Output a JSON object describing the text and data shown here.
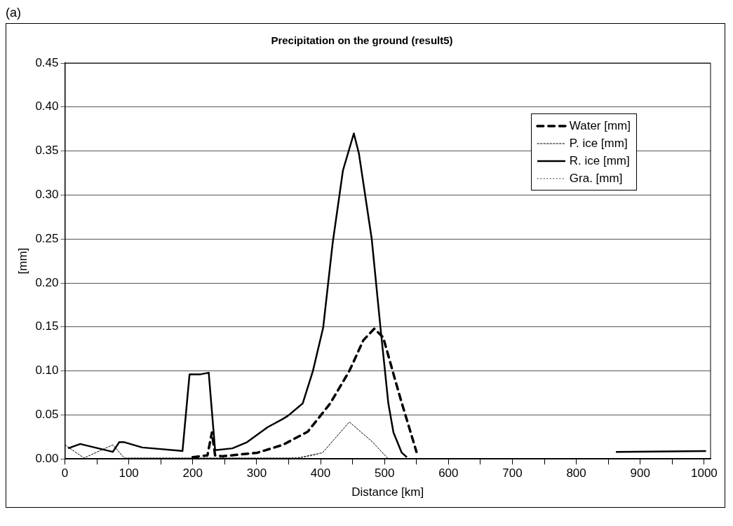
{
  "chart_data": {
    "type": "line",
    "title": "Precipitation on the ground (result5)",
    "xlabel": "Distance [km]",
    "ylabel": "[mm]",
    "annotations": [
      "(a)"
    ],
    "xlim": [
      0,
      1010
    ],
    "xticks": [
      0,
      {
        "value": 50,
        "label": null
      },
      100,
      {
        "value": 150,
        "label": null
      },
      200,
      {
        "value": 250,
        "label": null
      },
      300,
      {
        "value": 350,
        "label": null
      },
      400,
      {
        "value": 450,
        "label": null
      },
      500,
      {
        "value": 550,
        "label": null
      },
      600,
      {
        "value": 650,
        "label": null
      },
      700,
      {
        "value": 750,
        "label": null
      },
      800,
      {
        "value": 850,
        "label": null
      },
      900,
      {
        "value": 950,
        "label": null
      },
      1000
    ],
    "ylim": [
      0,
      0.45
    ],
    "yticks": [
      {
        "value": 0,
        "label": "0.00"
      },
      0.05,
      {
        "value": 0.1,
        "label": "0.10"
      },
      0.15,
      {
        "value": 0.2,
        "label": "0.20"
      },
      0.25,
      {
        "value": 0.3,
        "label": "0.30"
      },
      0.35,
      {
        "value": 0.4,
        "label": "0.40"
      },
      0.45
    ],
    "grid": "y",
    "legend": "top right",
    "marker": "none",
    "series": [
      {
        "name": "Water [mm]",
        "color": "#000000",
        "line_style": "dashed",
        "x": [
          200,
          223,
          230,
          235,
          246,
          301,
          341,
          380,
          415,
          445,
          467,
          484,
          498,
          515,
          526,
          550
        ],
        "values": [
          0.002,
          0.004,
          0.03,
          0.004,
          0.003,
          0.007,
          0.016,
          0.031,
          0.063,
          0.1,
          0.135,
          0.148,
          0.138,
          0.094,
          0.066,
          0.008
        ]
      },
      {
        "name": "P. ice [mm]",
        "color": "#000000",
        "line_style": "dashed",
        "x": [
          0,
          30,
          75,
          93,
          364,
          403,
          445,
          480,
          506
        ],
        "values": [
          0.016,
          0.001,
          0.016,
          0.001,
          0.001,
          0.007,
          0.042,
          0.02,
          0
        ]
      },
      {
        "name": "R. ice [mm]",
        "color": "#000000",
        "line_style": "solid",
        "x": [
          5,
          24,
          75,
          85,
          93,
          121,
          184,
          195,
          211,
          225,
          235,
          262,
          285,
          317,
          340,
          349,
          372,
          388,
          404,
          419,
          435,
          452,
          460,
          480,
          494,
          506,
          514,
          527,
          535,
          null,
          862,
          1003
        ],
        "values": [
          0.012,
          0.017,
          0.008,
          0.019,
          0.019,
          0.013,
          0.009,
          0.096,
          0.096,
          0.098,
          0.01,
          0.012,
          0.019,
          0.036,
          0.045,
          0.049,
          0.063,
          0.1,
          0.149,
          0.246,
          0.328,
          0.37,
          0.347,
          0.25,
          0.147,
          0.063,
          0.03,
          0.007,
          0.002,
          null,
          0.008,
          0.009
        ]
      },
      {
        "name": "Gra. [mm]",
        "color": "#000000",
        "line_style": "dotted",
        "x": [
          355,
          375,
          395
        ],
        "values": [
          0.001,
          0.002,
          0.005
        ]
      }
    ]
  }
}
